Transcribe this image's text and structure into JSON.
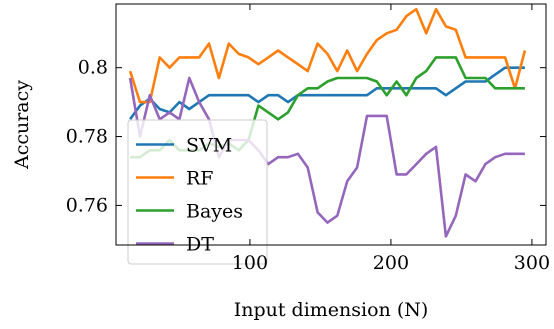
{
  "chart_data": {
    "type": "line",
    "title": "",
    "xlabel": "Input dimension (N)",
    "ylabel": "Accuracy",
    "xlim": [
      5,
      310
    ],
    "ylim": [
      0.7485,
      0.8185
    ],
    "xticks": [
      100,
      200,
      300
    ],
    "yticks": [
      0.76,
      0.78,
      0.8
    ],
    "ytick_labels": [
      "0.76",
      "0.78",
      "0.8"
    ],
    "grid": false,
    "legend_position": "lower-left",
    "series": [
      {
        "name": "SVM",
        "color": "#1f77b4",
        "x": [
          15,
          22,
          29,
          36,
          43,
          50,
          57,
          64,
          71,
          78,
          85,
          92,
          99,
          106,
          113,
          120,
          127,
          134,
          141,
          148,
          155,
          162,
          169,
          176,
          183,
          190,
          197,
          204,
          211,
          218,
          225,
          232,
          239,
          246,
          253,
          260,
          267,
          274,
          281,
          288,
          295
        ],
        "y": [
          0.785,
          0.789,
          0.791,
          0.788,
          0.787,
          0.79,
          0.788,
          0.79,
          0.792,
          0.792,
          0.792,
          0.792,
          0.792,
          0.79,
          0.792,
          0.792,
          0.79,
          0.792,
          0.792,
          0.792,
          0.792,
          0.792,
          0.792,
          0.792,
          0.792,
          0.794,
          0.794,
          0.794,
          0.794,
          0.794,
          0.794,
          0.794,
          0.792,
          0.794,
          0.796,
          0.796,
          0.796,
          0.798,
          0.8,
          0.8,
          0.8
        ]
      },
      {
        "name": "RF",
        "color": "#ff7f0e",
        "x": [
          15,
          22,
          29,
          36,
          43,
          50,
          57,
          64,
          71,
          78,
          85,
          92,
          99,
          106,
          113,
          120,
          127,
          134,
          141,
          148,
          155,
          162,
          169,
          176,
          183,
          190,
          197,
          204,
          211,
          218,
          225,
          232,
          239,
          246,
          253,
          260,
          267,
          274,
          281,
          288,
          295
        ],
        "y": [
          0.799,
          0.79,
          0.79,
          0.803,
          0.8,
          0.803,
          0.803,
          0.803,
          0.807,
          0.797,
          0.807,
          0.804,
          0.803,
          0.801,
          0.803,
          0.805,
          0.803,
          0.801,
          0.799,
          0.807,
          0.804,
          0.799,
          0.805,
          0.799,
          0.804,
          0.808,
          0.81,
          0.811,
          0.815,
          0.817,
          0.81,
          0.817,
          0.812,
          0.811,
          0.803,
          0.803,
          0.803,
          0.803,
          0.803,
          0.794,
          0.805
        ]
      },
      {
        "name": "Bayes",
        "color": "#2ca02c",
        "x": [
          15,
          22,
          29,
          36,
          43,
          50,
          57,
          64,
          71,
          78,
          85,
          92,
          99,
          106,
          113,
          120,
          127,
          134,
          141,
          148,
          155,
          162,
          169,
          176,
          183,
          190,
          197,
          204,
          211,
          218,
          225,
          232,
          239,
          246,
          253,
          260,
          267,
          274,
          281,
          288,
          295
        ],
        "y": [
          0.774,
          0.774,
          0.776,
          0.776,
          0.779,
          0.776,
          0.776,
          0.776,
          0.778,
          0.777,
          0.778,
          0.776,
          0.779,
          0.789,
          0.787,
          0.785,
          0.787,
          0.792,
          0.794,
          0.794,
          0.796,
          0.797,
          0.797,
          0.797,
          0.797,
          0.796,
          0.792,
          0.796,
          0.792,
          0.797,
          0.799,
          0.803,
          0.803,
          0.803,
          0.797,
          0.797,
          0.797,
          0.794,
          0.794,
          0.794,
          0.794
        ]
      },
      {
        "name": "DT",
        "color": "#9467bd",
        "x": [
          15,
          22,
          29,
          36,
          43,
          50,
          57,
          64,
          71,
          78,
          85,
          92,
          99,
          106,
          113,
          120,
          127,
          134,
          141,
          148,
          155,
          162,
          169,
          176,
          183,
          190,
          197,
          204,
          211,
          218,
          225,
          232,
          239,
          246,
          253,
          260,
          267,
          274,
          281,
          288,
          295
        ],
        "y": [
          0.797,
          0.78,
          0.792,
          0.785,
          0.787,
          0.785,
          0.797,
          0.79,
          0.785,
          0.774,
          0.779,
          0.779,
          0.779,
          0.776,
          0.772,
          0.774,
          0.774,
          0.775,
          0.771,
          0.758,
          0.755,
          0.757,
          0.767,
          0.771,
          0.786,
          0.786,
          0.786,
          0.769,
          0.769,
          0.772,
          0.775,
          0.777,
          0.751,
          0.757,
          0.769,
          0.767,
          0.772,
          0.774,
          0.775,
          0.775,
          0.775
        ]
      }
    ]
  }
}
